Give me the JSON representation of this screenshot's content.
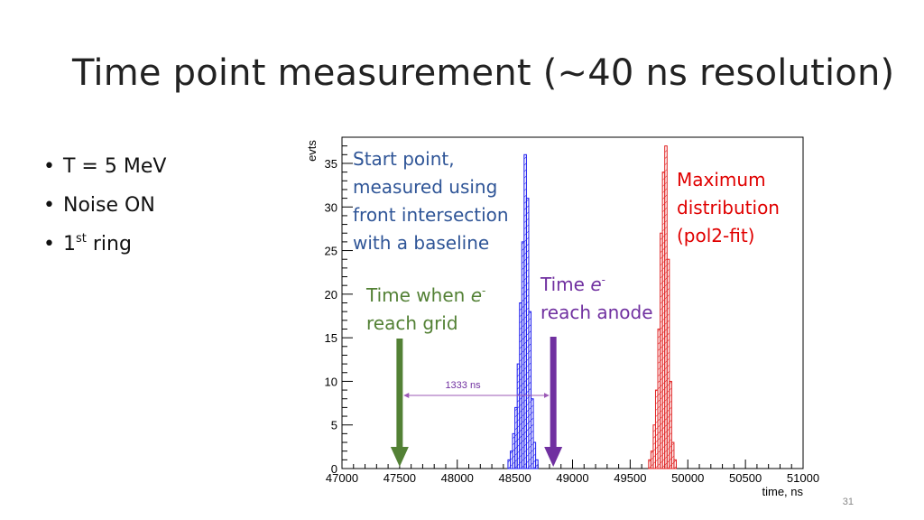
{
  "slide": {
    "title": "Time point measurement (~40 ns resolution)",
    "page_number": "31"
  },
  "bullets": [
    {
      "text": "T = 5 MeV"
    },
    {
      "text": "Noise ON"
    },
    {
      "prefix": "1",
      "sup": "st",
      "suffix": " ring"
    }
  ],
  "annotations": {
    "start_point": [
      "Start point,",
      "measured using",
      "front intersection",
      "with a baseline"
    ],
    "maximum": [
      "Maximum",
      "distribution",
      "(pol2-fit)"
    ],
    "grid": {
      "line1": "Time when ",
      "italic": "e",
      "sup": "-",
      "line2": "reach grid"
    },
    "anode": {
      "line1": "Time ",
      "italic": "e",
      "sup": "-",
      "line2": "reach anode"
    },
    "interval": "1333 ns"
  },
  "colors": {
    "blue_hist": "#1a1aee",
    "red_hist": "#e02020",
    "green_arrow": "#538135",
    "purple_arrow": "#7030a0",
    "interval_line": "#9b59b6"
  },
  "chart_data": {
    "type": "bar",
    "xlabel": "time, ns",
    "ylabel": "evts",
    "xlim": [
      47000,
      51000
    ],
    "ylim": [
      0,
      38
    ],
    "x_ticks": [
      47000,
      47500,
      48000,
      48500,
      49000,
      49500,
      50000,
      50500,
      51000
    ],
    "y_ticks": [
      0,
      5,
      10,
      15,
      20,
      25,
      30,
      35
    ],
    "bin_width": 20,
    "series": [
      {
        "color": "#1a1aee",
        "bins": [
          [
            48440,
            1
          ],
          [
            48460,
            2
          ],
          [
            48480,
            4
          ],
          [
            48500,
            7
          ],
          [
            48520,
            12
          ],
          [
            48540,
            19
          ],
          [
            48560,
            26
          ],
          [
            48580,
            36
          ],
          [
            48600,
            31
          ],
          [
            48620,
            18
          ],
          [
            48640,
            8
          ],
          [
            48660,
            3
          ],
          [
            48680,
            1
          ]
        ]
      },
      {
        "color": "#e02020",
        "bins": [
          [
            49660,
            1
          ],
          [
            49680,
            2
          ],
          [
            49700,
            5
          ],
          [
            49720,
            9
          ],
          [
            49740,
            16
          ],
          [
            49760,
            27
          ],
          [
            49780,
            34
          ],
          [
            49800,
            37
          ],
          [
            49820,
            24
          ],
          [
            49840,
            10
          ],
          [
            49860,
            3
          ],
          [
            49880,
            1
          ]
        ]
      }
    ],
    "markers": {
      "grid_time": 47500,
      "anode_time": 48833,
      "interval_ns": 1333
    }
  }
}
